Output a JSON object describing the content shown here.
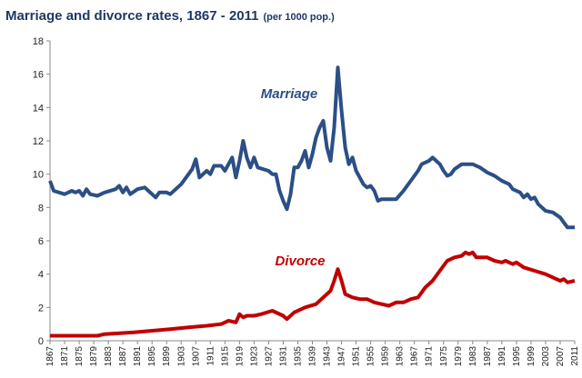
{
  "chart_data": {
    "type": "line",
    "title": "Marriage and divorce rates, 1867 - 2011",
    "subtitle": "(per 1000 pop.)",
    "xlim": [
      1867,
      2011
    ],
    "xticks": [
      1867,
      1871,
      1875,
      1879,
      1883,
      1887,
      1891,
      1895,
      1899,
      1903,
      1907,
      1911,
      1915,
      1919,
      1923,
      1927,
      1931,
      1935,
      1939,
      1943,
      1947,
      1951,
      1955,
      1959,
      1963,
      1967,
      1971,
      1975,
      1979,
      1983,
      1987,
      1991,
      1995,
      1999,
      2003,
      2007,
      2011
    ],
    "ylim": [
      0,
      18
    ],
    "yticks": [
      0,
      2,
      4,
      6,
      8,
      10,
      12,
      14,
      16,
      18
    ],
    "grid": false,
    "series": [
      {
        "name": "Marriage",
        "color": "#2b4f86",
        "x": [
          1867,
          1868,
          1871,
          1873,
          1874,
          1875,
          1876,
          1877,
          1878,
          1880,
          1882,
          1885,
          1886,
          1887,
          1888,
          1889,
          1891,
          1893,
          1894,
          1896,
          1897,
          1899,
          1900,
          1903,
          1905,
          1906,
          1907,
          1908,
          1910,
          1911,
          1912,
          1914,
          1915,
          1917,
          1918,
          1919,
          1920,
          1921,
          1922,
          1923,
          1924,
          1927,
          1928,
          1929,
          1930,
          1931,
          1932,
          1933,
          1934,
          1935,
          1936,
          1937,
          1938,
          1939,
          1940,
          1941,
          1942,
          1943,
          1944,
          1945,
          1946,
          1947,
          1948,
          1949,
          1950,
          1951,
          1952,
          1953,
          1954,
          1955,
          1956,
          1957,
          1958,
          1962,
          1964,
          1966,
          1968,
          1969,
          1971,
          1972,
          1973,
          1974,
          1975,
          1976,
          1977,
          1978,
          1980,
          1983,
          1985,
          1987,
          1989,
          1991,
          1993,
          1994,
          1996,
          1997,
          1998,
          1999,
          2000,
          2001,
          2003,
          2005,
          2007,
          2008,
          2009,
          2011
        ],
        "values": [
          9.6,
          9.0,
          8.8,
          9.0,
          8.9,
          9.0,
          8.7,
          9.1,
          8.8,
          8.7,
          8.9,
          9.1,
          9.3,
          8.9,
          9.2,
          8.8,
          9.1,
          9.2,
          9.0,
          8.6,
          8.9,
          8.9,
          8.8,
          9.4,
          10.0,
          10.3,
          10.9,
          9.8,
          10.2,
          10.0,
          10.5,
          10.5,
          10.2,
          11.0,
          9.8,
          10.8,
          12.0,
          11.0,
          10.4,
          11.0,
          10.4,
          10.2,
          10.0,
          10.0,
          9.0,
          8.4,
          7.9,
          8.8,
          10.4,
          10.4,
          10.8,
          11.4,
          10.4,
          11.2,
          12.2,
          12.8,
          13.2,
          11.6,
          10.8,
          12.8,
          16.4,
          13.8,
          11.6,
          10.6,
          11.0,
          10.2,
          9.8,
          9.4,
          9.2,
          9.3,
          9.0,
          8.4,
          8.5,
          8.5,
          9.0,
          9.6,
          10.2,
          10.6,
          10.8,
          11.0,
          10.8,
          10.6,
          10.2,
          9.9,
          10.0,
          10.3,
          10.6,
          10.6,
          10.4,
          10.1,
          9.9,
          9.6,
          9.4,
          9.1,
          8.9,
          8.6,
          8.8,
          8.5,
          8.6,
          8.2,
          7.8,
          7.7,
          7.4,
          7.1,
          6.8,
          6.8
        ]
      },
      {
        "name": "Divorce",
        "color": "#c00000",
        "x": [
          1867,
          1880,
          1882,
          1890,
          1895,
          1900,
          1905,
          1910,
          1914,
          1916,
          1918,
          1919,
          1920,
          1921,
          1923,
          1925,
          1928,
          1931,
          1932,
          1934,
          1937,
          1940,
          1942,
          1944,
          1945,
          1946,
          1947,
          1948,
          1950,
          1952,
          1954,
          1956,
          1958,
          1960,
          1962,
          1964,
          1966,
          1968,
          1970,
          1972,
          1974,
          1976,
          1978,
          1980,
          1981,
          1982,
          1983,
          1984,
          1987,
          1989,
          1991,
          1992,
          1994,
          1995,
          1997,
          2000,
          2003,
          2006,
          2007,
          2008,
          2009,
          2011
        ],
        "values": [
          0.3,
          0.3,
          0.4,
          0.5,
          0.6,
          0.7,
          0.8,
          0.9,
          1.0,
          1.2,
          1.1,
          1.6,
          1.4,
          1.5,
          1.5,
          1.6,
          1.8,
          1.5,
          1.3,
          1.7,
          2.0,
          2.2,
          2.6,
          3.0,
          3.6,
          4.3,
          3.6,
          2.8,
          2.6,
          2.5,
          2.5,
          2.3,
          2.2,
          2.1,
          2.3,
          2.3,
          2.5,
          2.6,
          3.2,
          3.6,
          4.2,
          4.8,
          5.0,
          5.1,
          5.3,
          5.2,
          5.3,
          5.0,
          5.0,
          4.8,
          4.7,
          4.8,
          4.6,
          4.7,
          4.4,
          4.2,
          4.0,
          3.7,
          3.6,
          3.7,
          3.5,
          3.6
        ]
      }
    ]
  }
}
